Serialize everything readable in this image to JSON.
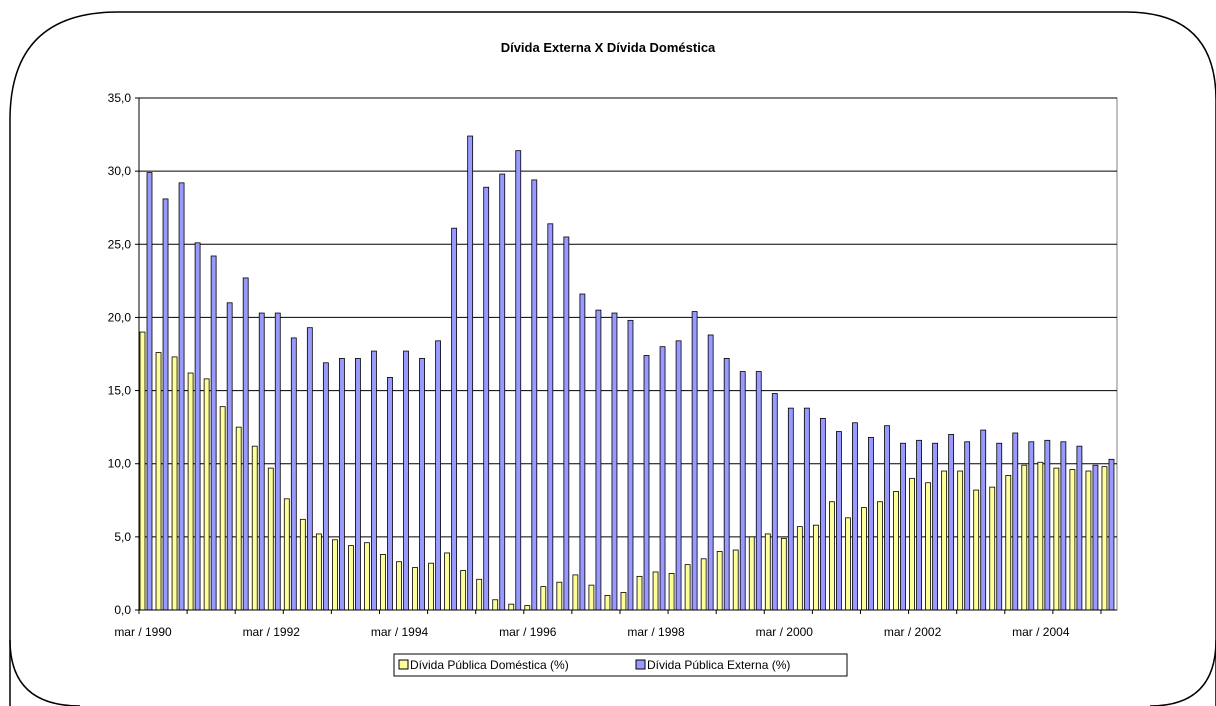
{
  "chart_data": {
    "type": "bar",
    "title": "Dívida Externa X Dívida Doméstica",
    "xlabel": "",
    "ylabel": "",
    "ylim": [
      0,
      35
    ],
    "yticks": [
      "0,0",
      "5,0",
      "10,0",
      "15,0",
      "20,0",
      "25,0",
      "30,0",
      "35,0"
    ],
    "x_tick_labels": [
      {
        "index": 0,
        "label": "mar / 1990"
      },
      {
        "index": 8,
        "label": "mar / 1992"
      },
      {
        "index": 16,
        "label": "mar / 1994"
      },
      {
        "index": 24,
        "label": "mar / 1996"
      },
      {
        "index": 32,
        "label": "mar / 1998"
      },
      {
        "index": 40,
        "label": "mar / 2000"
      },
      {
        "index": 48,
        "label": "mar / 2002"
      },
      {
        "index": 56,
        "label": "mar / 2004"
      }
    ],
    "grid": true,
    "legend_position": "bottom-center",
    "series": [
      {
        "name": "Dívida Pública Doméstica (%)",
        "color": "#FFFF99",
        "values": [
          19.0,
          17.6,
          17.3,
          16.2,
          15.8,
          13.9,
          12.5,
          11.2,
          9.7,
          7.6,
          6.2,
          5.2,
          4.8,
          4.4,
          4.6,
          3.8,
          3.3,
          2.9,
          3.2,
          3.9,
          2.7,
          2.1,
          0.7,
          0.4,
          0.3,
          1.6,
          1.9,
          2.4,
          1.7,
          1.0,
          1.2,
          2.3,
          2.6,
          2.5,
          3.1,
          3.5,
          4.0,
          4.1,
          5.0,
          5.2,
          4.9,
          5.7,
          5.8,
          7.4,
          6.3,
          7.0,
          7.4,
          8.1,
          9.0,
          8.7,
          9.5,
          9.5,
          8.2,
          8.4,
          9.2,
          9.9,
          10.1,
          9.7,
          9.6,
          9.5,
          9.8
        ]
      },
      {
        "name": "Dívida Pública Externa (%)",
        "color": "#9999FF",
        "values": [
          29.9,
          28.1,
          29.2,
          25.1,
          24.2,
          21.0,
          22.7,
          20.3,
          20.3,
          18.6,
          19.3,
          16.9,
          17.2,
          17.2,
          17.7,
          15.9,
          17.7,
          17.2,
          18.4,
          26.1,
          32.4,
          28.9,
          29.8,
          31.4,
          29.4,
          26.4,
          25.5,
          21.6,
          20.5,
          20.3,
          19.8,
          17.4,
          18.0,
          18.4,
          20.4,
          18.8,
          17.2,
          16.3,
          16.3,
          14.8,
          13.8,
          13.8,
          13.1,
          12.2,
          12.8,
          11.8,
          12.6,
          11.4,
          11.6,
          11.4,
          12.0,
          11.5,
          12.3,
          11.4,
          12.1,
          11.5,
          11.6,
          11.5,
          11.2,
          9.9,
          10.3
        ]
      }
    ]
  }
}
